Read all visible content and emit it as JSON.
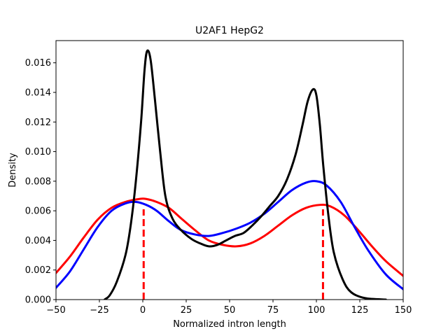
{
  "chart_data": {
    "type": "line",
    "title": "U2AF1 HepG2",
    "xlabel": "Normalized intron length",
    "ylabel": "Density",
    "xlim": [
      -50,
      150
    ],
    "ylim": [
      0,
      0.0175
    ],
    "xticks": [
      -50,
      -25,
      0,
      25,
      50,
      75,
      100,
      125,
      150
    ],
    "yticks": [
      0.0,
      0.002,
      0.004,
      0.006,
      0.008,
      0.01,
      0.012,
      0.014,
      0.016
    ],
    "xtick_labels": [
      "−50",
      "−25",
      "0",
      "25",
      "50",
      "75",
      "100",
      "125",
      "150"
    ],
    "ytick_labels": [
      "0.000",
      "0.002",
      "0.004",
      "0.006",
      "0.008",
      "0.010",
      "0.012",
      "0.014",
      "0.016"
    ],
    "grid": false,
    "series": [
      {
        "color": "#000000",
        "style": "solid",
        "points": [
          [
            -22,
            0.0
          ],
          [
            -19,
            0.0003
          ],
          [
            -15,
            0.0012
          ],
          [
            -10,
            0.003
          ],
          [
            -7,
            0.005
          ],
          [
            -4,
            0.008
          ],
          [
            -1,
            0.012
          ],
          [
            1,
            0.0155
          ],
          [
            2.5,
            0.0168
          ],
          [
            4.5,
            0.0162
          ],
          [
            7,
            0.0135
          ],
          [
            10,
            0.01
          ],
          [
            13,
            0.007
          ],
          [
            17,
            0.0055
          ],
          [
            22,
            0.0047
          ],
          [
            28,
            0.0041
          ],
          [
            33,
            0.0038
          ],
          [
            38,
            0.0036
          ],
          [
            43,
            0.0037
          ],
          [
            48,
            0.004
          ],
          [
            53,
            0.0043
          ],
          [
            58,
            0.0045
          ],
          [
            63,
            0.005
          ],
          [
            68,
            0.0056
          ],
          [
            73,
            0.0063
          ],
          [
            78,
            0.007
          ],
          [
            83,
            0.0081
          ],
          [
            88,
            0.0098
          ],
          [
            92,
            0.0118
          ],
          [
            95,
            0.0134
          ],
          [
            98,
            0.0142
          ],
          [
            100,
            0.0138
          ],
          [
            102,
            0.0118
          ],
          [
            104,
            0.009
          ],
          [
            107,
            0.0056
          ],
          [
            110,
            0.0032
          ],
          [
            115,
            0.0014
          ],
          [
            120,
            0.0005
          ],
          [
            128,
            0.0001
          ],
          [
            140,
            0.0
          ]
        ]
      },
      {
        "color": "#ff0000",
        "style": "solid",
        "points": [
          [
            -50,
            0.0018
          ],
          [
            -42,
            0.0029
          ],
          [
            -34,
            0.0042
          ],
          [
            -26,
            0.0054
          ],
          [
            -18,
            0.0062
          ],
          [
            -10,
            0.0066
          ],
          [
            -2,
            0.0068
          ],
          [
            2,
            0.0068
          ],
          [
            8,
            0.0066
          ],
          [
            15,
            0.0062
          ],
          [
            22,
            0.0055
          ],
          [
            30,
            0.0047
          ],
          [
            38,
            0.004
          ],
          [
            46,
            0.0037
          ],
          [
            54,
            0.0036
          ],
          [
            62,
            0.0038
          ],
          [
            70,
            0.0043
          ],
          [
            78,
            0.005
          ],
          [
            86,
            0.0057
          ],
          [
            94,
            0.0062
          ],
          [
            102,
            0.0064
          ],
          [
            108,
            0.0063
          ],
          [
            116,
            0.0057
          ],
          [
            124,
            0.0047
          ],
          [
            132,
            0.0036
          ],
          [
            140,
            0.0026
          ],
          [
            150,
            0.0016
          ]
        ]
      },
      {
        "color": "#0000ff",
        "style": "solid",
        "points": [
          [
            -50,
            0.0008
          ],
          [
            -42,
            0.0019
          ],
          [
            -34,
            0.0034
          ],
          [
            -26,
            0.0049
          ],
          [
            -18,
            0.006
          ],
          [
            -10,
            0.0065
          ],
          [
            -4,
            0.0066
          ],
          [
            2,
            0.0064
          ],
          [
            8,
            0.006
          ],
          [
            15,
            0.0053
          ],
          [
            22,
            0.0047
          ],
          [
            30,
            0.0044
          ],
          [
            38,
            0.0043
          ],
          [
            46,
            0.0045
          ],
          [
            54,
            0.0048
          ],
          [
            62,
            0.0052
          ],
          [
            70,
            0.0058
          ],
          [
            78,
            0.0066
          ],
          [
            86,
            0.0074
          ],
          [
            94,
            0.0079
          ],
          [
            100,
            0.008
          ],
          [
            106,
            0.0077
          ],
          [
            114,
            0.0066
          ],
          [
            122,
            0.0049
          ],
          [
            130,
            0.0033
          ],
          [
            140,
            0.0017
          ],
          [
            150,
            0.0007
          ]
        ]
      }
    ],
    "vlines": [
      {
        "x": 0.5,
        "ymax": 0.0061,
        "color": "#ff0000",
        "style": "dashed"
      },
      {
        "x": 103.8,
        "ymax": 0.0061,
        "color": "#ff0000",
        "style": "dashed"
      }
    ]
  }
}
